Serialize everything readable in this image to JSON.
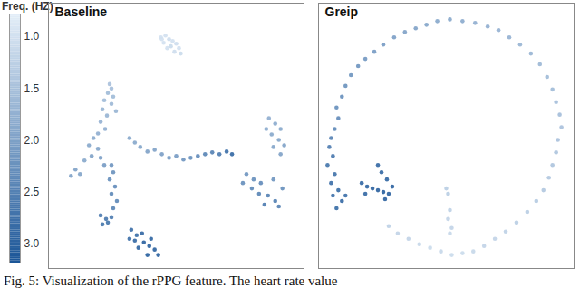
{
  "chart_data": {
    "type": "scatter",
    "tick_labels": false,
    "caption": "Fig. 5: Visualization of the rPPG feature. The heart rate value",
    "colorbar": {
      "title": "Freq. (HZ)",
      "range": [
        0.78,
        3.19
      ],
      "ticks": [
        {
          "value": 1,
          "label": "1.0"
        },
        {
          "value": 1.5,
          "label": "1.5"
        },
        {
          "value": 2,
          "label": "2.0"
        },
        {
          "value": 2.5,
          "label": "2.5"
        },
        {
          "value": 3,
          "label": "3.0"
        }
      ]
    },
    "panels": [
      {
        "title": "Baseline",
        "xlim": [
          0,
          284
        ],
        "ylim": [
          295,
          0
        ],
        "points": [
          [
            125,
            38,
            1.0
          ],
          [
            130,
            36,
            1.0
          ],
          [
            134,
            40,
            1.05
          ],
          [
            138,
            42,
            1.0
          ],
          [
            142,
            45,
            1.05
          ],
          [
            128,
            44,
            1.0
          ],
          [
            136,
            48,
            1.1
          ],
          [
            145,
            50,
            1.0
          ],
          [
            140,
            54,
            1.05
          ],
          [
            132,
            50,
            1.0
          ],
          [
            147,
            56,
            1.1
          ],
          [
            126,
            40,
            1.0
          ],
          [
            68,
            90,
            1.5
          ],
          [
            70,
            95,
            1.55
          ],
          [
            66,
            100,
            1.6
          ],
          [
            62,
            108,
            1.6
          ],
          [
            70,
            112,
            1.65
          ],
          [
            60,
            118,
            1.7
          ],
          [
            65,
            125,
            1.7
          ],
          [
            58,
            132,
            1.75
          ],
          [
            63,
            140,
            1.8
          ],
          [
            55,
            145,
            1.8
          ],
          [
            72,
            104,
            1.6
          ],
          [
            75,
            120,
            1.7
          ],
          [
            50,
            150,
            1.85
          ],
          [
            45,
            158,
            1.9
          ],
          [
            55,
            162,
            1.95
          ],
          [
            48,
            170,
            2.0
          ],
          [
            40,
            175,
            1.9
          ],
          [
            30,
            185,
            2.0
          ],
          [
            25,
            192,
            2.0
          ],
          [
            35,
            190,
            1.95
          ],
          [
            58,
            172,
            2.05
          ],
          [
            62,
            180,
            2.1
          ],
          [
            90,
            150,
            1.9
          ],
          [
            96,
            155,
            1.9
          ],
          [
            102,
            160,
            1.95
          ],
          [
            110,
            165,
            2.0
          ],
          [
            118,
            163,
            2.0
          ],
          [
            126,
            168,
            2.05
          ],
          [
            134,
            172,
            2.1
          ],
          [
            142,
            170,
            2.1
          ],
          [
            150,
            174,
            2.2
          ],
          [
            158,
            172,
            2.3
          ],
          [
            166,
            170,
            2.35
          ],
          [
            174,
            168,
            2.45
          ],
          [
            182,
            166,
            2.5
          ],
          [
            190,
            168,
            2.6
          ],
          [
            198,
            165,
            2.8
          ],
          [
            204,
            168,
            2.9
          ],
          [
            70,
            180,
            2.2
          ],
          [
            72,
            188,
            2.25
          ],
          [
            68,
            196,
            2.3
          ],
          [
            74,
            204,
            2.35
          ],
          [
            70,
            212,
            2.4
          ],
          [
            76,
            220,
            2.4
          ],
          [
            72,
            228,
            2.45
          ],
          [
            58,
            236,
            2.6
          ],
          [
            64,
            240,
            2.65
          ],
          [
            70,
            238,
            2.6
          ],
          [
            60,
            246,
            2.7
          ],
          [
            66,
            244,
            2.7
          ],
          [
            92,
            252,
            2.8
          ],
          [
            98,
            258,
            2.85
          ],
          [
            104,
            256,
            2.9
          ],
          [
            96,
            264,
            2.9
          ],
          [
            106,
            266,
            3.0
          ],
          [
            112,
            270,
            3.0
          ],
          [
            100,
            272,
            2.95
          ],
          [
            118,
            274,
            3.0
          ],
          [
            110,
            280,
            3.05
          ],
          [
            122,
            280,
            3.0
          ],
          [
            90,
            262,
            2.8
          ],
          [
            114,
            262,
            2.95
          ],
          [
            245,
            128,
            1.8
          ],
          [
            252,
            134,
            1.85
          ],
          [
            258,
            140,
            1.9
          ],
          [
            248,
            146,
            1.9
          ],
          [
            256,
            152,
            1.95
          ],
          [
            262,
            158,
            2.0
          ],
          [
            250,
            160,
            1.95
          ],
          [
            258,
            168,
            2.0
          ],
          [
            242,
            140,
            1.85
          ],
          [
            220,
            190,
            2.2
          ],
          [
            228,
            196,
            2.3
          ],
          [
            236,
            200,
            2.35
          ],
          [
            226,
            206,
            2.4
          ],
          [
            234,
            212,
            2.45
          ],
          [
            244,
            214,
            2.5
          ],
          [
            252,
            220,
            2.55
          ],
          [
            240,
            224,
            2.6
          ],
          [
            256,
            226,
            2.5
          ],
          [
            260,
            206,
            2.3
          ],
          [
            250,
            196,
            2.2
          ],
          [
            216,
            200,
            2.3
          ]
        ]
      },
      {
        "title": "Greip",
        "xlim": [
          0,
          284
        ],
        "ylim": [
          295,
          0
        ],
        "points": [
          [
            14,
            150,
            2.5
          ],
          [
            12,
            160,
            2.6
          ],
          [
            16,
            170,
            2.65
          ],
          [
            10,
            180,
            2.7
          ],
          [
            18,
            190,
            2.75
          ],
          [
            14,
            200,
            2.8
          ],
          [
            22,
            208,
            2.85
          ],
          [
            16,
            214,
            2.8
          ],
          [
            26,
            220,
            2.9
          ],
          [
            20,
            228,
            2.85
          ],
          [
            30,
            214,
            2.8
          ],
          [
            18,
            140,
            2.4
          ],
          [
            22,
            128,
            2.35
          ],
          [
            20,
            116,
            2.3
          ],
          [
            26,
            104,
            2.3
          ],
          [
            30,
            92,
            2.25
          ],
          [
            36,
            80,
            2.2
          ],
          [
            44,
            70,
            2.2
          ],
          [
            52,
            62,
            2.15
          ],
          [
            62,
            54,
            2.1
          ],
          [
            72,
            46,
            2.1
          ],
          [
            84,
            38,
            2.05
          ],
          [
            96,
            32,
            2.0
          ],
          [
            108,
            28,
            2.0
          ],
          [
            120,
            24,
            1.95
          ],
          [
            132,
            20,
            1.9
          ],
          [
            146,
            18,
            1.9
          ],
          [
            160,
            20,
            1.85
          ],
          [
            174,
            22,
            1.8
          ],
          [
            188,
            26,
            1.8
          ],
          [
            200,
            30,
            1.75
          ],
          [
            212,
            38,
            1.75
          ],
          [
            224,
            46,
            1.7
          ],
          [
            236,
            56,
            1.7
          ],
          [
            246,
            68,
            1.65
          ],
          [
            254,
            82,
            1.6
          ],
          [
            260,
            96,
            1.6
          ],
          [
            264,
            110,
            1.55
          ],
          [
            268,
            124,
            1.55
          ],
          [
            270,
            138,
            1.5
          ],
          [
            266,
            152,
            1.5
          ],
          [
            264,
            166,
            1.45
          ],
          [
            260,
            180,
            1.45
          ],
          [
            256,
            194,
            1.4
          ],
          [
            250,
            208,
            1.4
          ],
          [
            242,
            220,
            1.35
          ],
          [
            232,
            232,
            1.3
          ],
          [
            220,
            244,
            1.3
          ],
          [
            208,
            254,
            1.25
          ],
          [
            196,
            262,
            1.2
          ],
          [
            184,
            270,
            1.2
          ],
          [
            172,
            276,
            1.15
          ],
          [
            160,
            278,
            1.1
          ],
          [
            148,
            280,
            1.1
          ],
          [
            136,
            276,
            1.15
          ],
          [
            124,
            272,
            1.1
          ],
          [
            112,
            268,
            1.15
          ],
          [
            100,
            262,
            1.2
          ],
          [
            88,
            256,
            1.2
          ],
          [
            78,
            248,
            1.25
          ],
          [
            48,
            200,
            2.9
          ],
          [
            54,
            204,
            2.95
          ],
          [
            60,
            206,
            3.0
          ],
          [
            66,
            208,
            3.0
          ],
          [
            72,
            210,
            3.05
          ],
          [
            78,
            212,
            3.0
          ],
          [
            82,
            204,
            3.0
          ],
          [
            76,
            196,
            2.95
          ],
          [
            70,
            188,
            2.9
          ],
          [
            66,
            180,
            2.9
          ],
          [
            74,
            218,
            3.0
          ],
          [
            52,
            212,
            2.9
          ],
          [
            142,
            206,
            1.3
          ],
          [
            144,
            212,
            1.3
          ],
          [
            146,
            230,
            1.25
          ],
          [
            144,
            240,
            1.2
          ],
          [
            148,
            250,
            1.2
          ],
          [
            146,
            256,
            1.15
          ]
        ]
      }
    ]
  }
}
